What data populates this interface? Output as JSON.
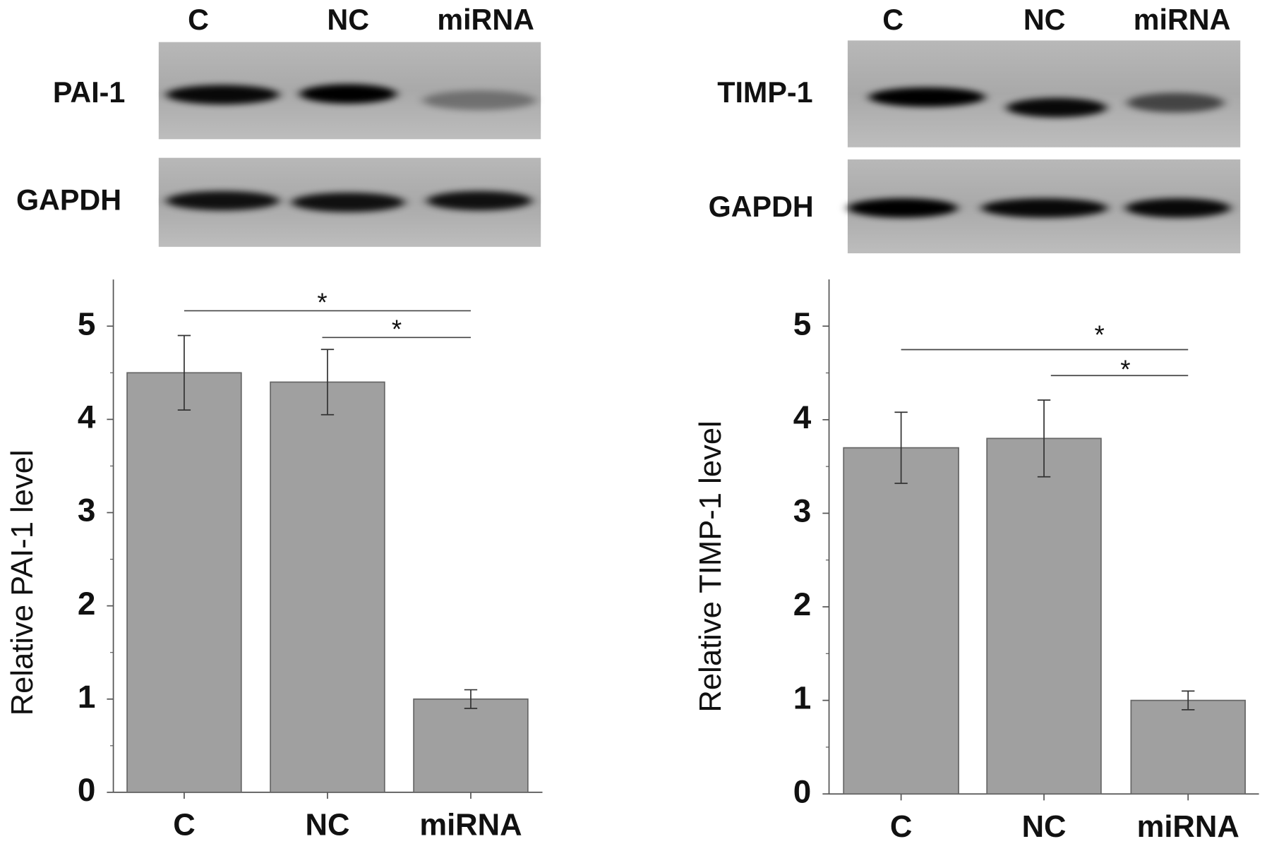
{
  "chart_data": [
    {
      "type": "bar",
      "ylabel": "Relative PAI-1 level",
      "blot": {
        "lanes": [
          "C",
          "NC",
          "miRNA"
        ],
        "rows": [
          "PAI-1",
          "GAPDH"
        ]
      },
      "categories": [
        "C",
        "NC",
        "miRNA"
      ],
      "values": [
        4.5,
        4.4,
        1.0
      ],
      "errors": [
        0.4,
        0.35,
        0.1
      ],
      "color": "#a0a0a0",
      "ylim": [
        0,
        5.5
      ],
      "yticks": [
        0,
        1,
        2,
        3,
        4,
        5
      ],
      "annotations": [
        "*",
        "*"
      ]
    },
    {
      "type": "bar",
      "ylabel": "Relative TIMP-1 level",
      "blot": {
        "lanes": [
          "C",
          "NC",
          "miRNA"
        ],
        "rows": [
          "TIMP-1",
          "GAPDH"
        ]
      },
      "categories": [
        "C",
        "NC",
        "miRNA"
      ],
      "values": [
        3.7,
        3.8,
        1.0
      ],
      "errors": [
        0.38,
        0.41,
        0.1
      ],
      "color": "#a0a0a0",
      "ylim": [
        0,
        5.5
      ],
      "yticks": [
        0,
        1,
        2,
        3,
        4,
        5
      ],
      "annotations": [
        "*",
        "*"
      ]
    }
  ]
}
